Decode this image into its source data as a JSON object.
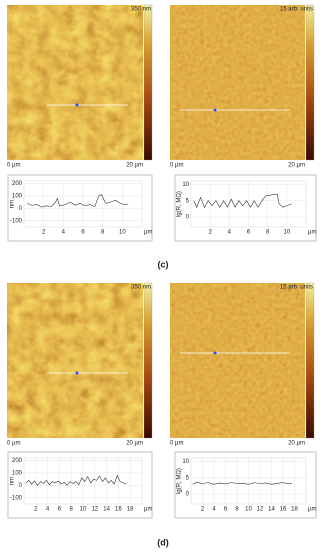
{
  "panels": [
    {
      "label": "(c)",
      "images": [
        {
          "scale_top": "350 nm",
          "x_start": "0 µm",
          "x_end": "20 µm"
        },
        {
          "scale_top": "15 arb. units",
          "x_start": "0 µm",
          "x_end": "20 µm"
        }
      ],
      "profiles": [
        {
          "type": "line",
          "y_label": "nm",
          "x_label": "µm",
          "xlim": [
            0,
            12
          ],
          "ylim": [
            -150,
            220
          ],
          "yticks": [
            200,
            100,
            0,
            -100
          ],
          "xticks": [
            2,
            4,
            6,
            8,
            10
          ],
          "x": [
            0.3,
            0.8,
            1.3,
            1.8,
            2.3,
            2.8,
            3.2,
            3.4,
            3.6,
            4.2,
            4.7,
            5.2,
            5.7,
            6.2,
            6.7,
            7.2,
            7.6,
            7.9,
            8.3,
            8.8,
            9.3,
            9.8,
            10.2,
            10.6
          ],
          "values": [
            40,
            25,
            30,
            10,
            20,
            15,
            50,
            80,
            20,
            30,
            50,
            25,
            40,
            20,
            30,
            15,
            100,
            110,
            40,
            50,
            65,
            40,
            30,
            35
          ]
        },
        {
          "type": "line",
          "y_label": "lg(R, MΩ)",
          "x_label": "µm",
          "xlim": [
            0,
            12
          ],
          "ylim": [
            -3,
            11
          ],
          "yticks": [
            10,
            5,
            0
          ],
          "xticks": [
            2,
            4,
            6,
            8,
            10
          ],
          "x": [
            0.3,
            0.6,
            1,
            1.4,
            1.8,
            2.2,
            2.6,
            3,
            3.4,
            3.8,
            4.2,
            4.6,
            5,
            5.4,
            5.8,
            6.2,
            6.6,
            7,
            7.4,
            7.8,
            8.5,
            9,
            9.2,
            9.6,
            10,
            10.5
          ],
          "values": [
            5,
            3,
            6,
            3,
            5,
            3.5,
            5,
            3,
            5,
            3,
            5.5,
            3,
            5,
            3.5,
            5,
            3,
            5,
            3,
            5,
            6.5,
            6.8,
            7,
            4,
            3,
            3.5,
            4
          ]
        }
      ]
    },
    {
      "label": "(d)",
      "images": [
        {
          "scale_top": "350 nm",
          "x_start": "0 µm",
          "x_end": "20 µm"
        },
        {
          "scale_top": "15 arb. units",
          "x_start": "0 µm",
          "x_end": "20 µm"
        }
      ],
      "profiles": [
        {
          "type": "line",
          "y_label": "nm",
          "x_label": "µm",
          "xlim": [
            0,
            20
          ],
          "ylim": [
            -150,
            220
          ],
          "yticks": [
            200,
            100,
            0,
            -100
          ],
          "xticks": [
            2,
            4,
            6,
            8,
            10,
            12,
            14,
            16,
            18
          ],
          "x": [
            0.3,
            0.8,
            1.3,
            1.8,
            2.3,
            2.8,
            3.3,
            3.8,
            4.3,
            4.8,
            5.3,
            5.8,
            6.3,
            6.8,
            7.3,
            7.8,
            8.3,
            8.8,
            9.3,
            9.8,
            10.3,
            10.8,
            11.3,
            11.8,
            12.3,
            12.8,
            13.3,
            13.8,
            14.3,
            14.8,
            15.3,
            15.8,
            16.3,
            16.8,
            17.3
          ],
          "values": [
            20,
            40,
            10,
            35,
            0,
            30,
            15,
            40,
            5,
            30,
            20,
            35,
            10,
            25,
            0,
            30,
            15,
            30,
            5,
            60,
            30,
            70,
            20,
            50,
            40,
            75,
            30,
            60,
            20,
            40,
            10,
            80,
            30,
            20,
            10
          ]
        },
        {
          "type": "line",
          "y_label": "lg(R, MΩ)",
          "x_label": "µm",
          "xlim": [
            0,
            20
          ],
          "ylim": [
            -3,
            11
          ],
          "yticks": [
            10,
            5,
            0
          ],
          "xticks": [
            2,
            4,
            6,
            8,
            10,
            12,
            14,
            16,
            18
          ],
          "x": [
            0.3,
            1,
            2,
            3,
            4,
            5,
            6,
            7,
            8,
            9,
            10,
            11,
            12,
            13,
            14,
            15,
            16,
            17,
            17.5
          ],
          "values": [
            3,
            3.6,
            3.2,
            3.5,
            3,
            3.4,
            3.1,
            3.5,
            3.2,
            3.3,
            3,
            3.5,
            3.2,
            3.4,
            3,
            3.3,
            3.5,
            3.1,
            3.3
          ]
        }
      ]
    }
  ]
}
